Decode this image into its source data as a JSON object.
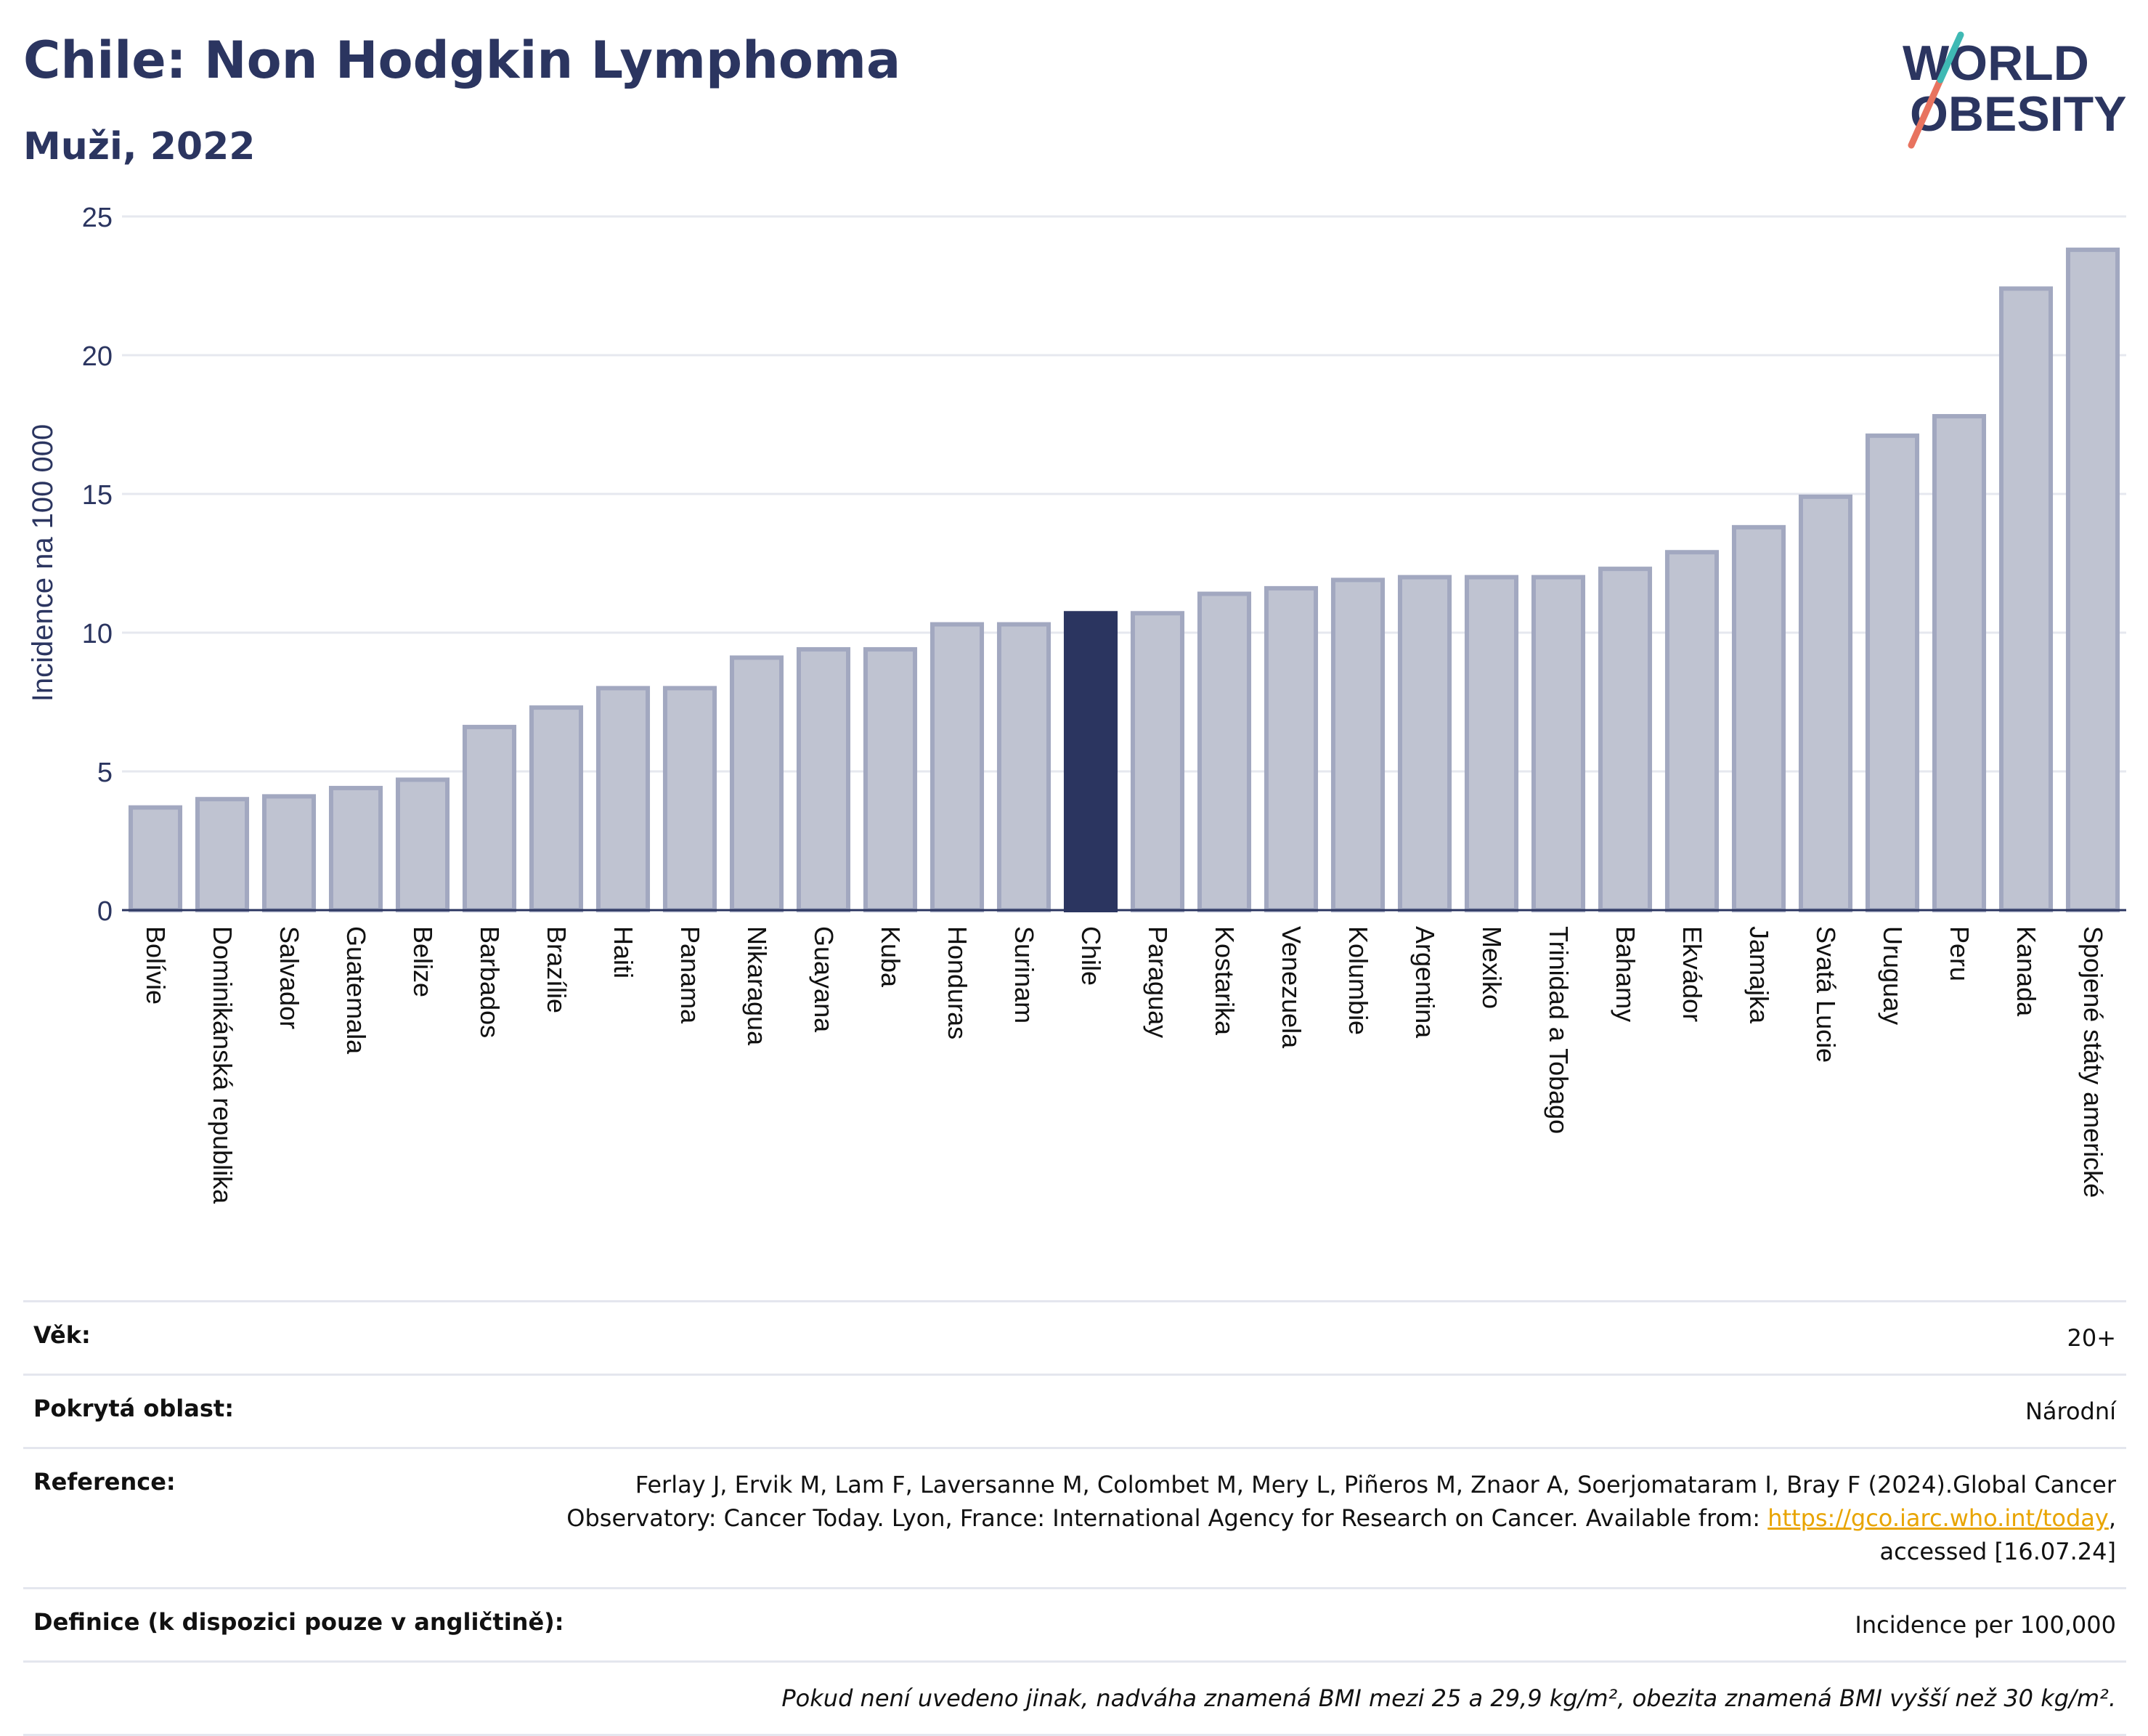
{
  "header": {
    "title": "Chile: Non Hodgkin Lymphoma",
    "subtitle": "Muži, 2022"
  },
  "logo": {
    "line1": "WORLD",
    "line2": "OBESITY"
  },
  "colors": {
    "bar": "#bfc3d1",
    "bar_border": "#a2a8c0",
    "highlight": "#2b3560",
    "grid": "#e6e8ef",
    "text": "#2b3560"
  },
  "chart_data": {
    "type": "bar",
    "ylabel": "Incidence na 100 000",
    "ylim": [
      0,
      25
    ],
    "yticks": [
      0,
      5,
      10,
      15,
      20,
      25
    ],
    "highlight": "Chile",
    "categories": [
      "Bolívie",
      "Dominikánská republika",
      "Salvador",
      "Guatemala",
      "Belize",
      "Barbados",
      "Brazílie",
      "Haiti",
      "Panama",
      "Nikaragua",
      "Guayana",
      "Kuba",
      "Honduras",
      "Surinam",
      "Chile",
      "Paraguay",
      "Kostarika",
      "Venezuela",
      "Kolumbie",
      "Argentina",
      "Mexiko",
      "Trinidad a Tobago",
      "Bahamy",
      "Ekvádor",
      "Jamajka",
      "Svatá Lucie",
      "Uruguay",
      "Peru",
      "Kanada",
      "Spojené státy americké"
    ],
    "values": [
      3.7,
      4.0,
      4.1,
      4.4,
      4.7,
      6.6,
      7.3,
      8.0,
      8.0,
      9.1,
      9.4,
      9.4,
      10.3,
      10.3,
      10.7,
      10.7,
      11.4,
      11.6,
      11.9,
      12.0,
      12.0,
      12.0,
      12.3,
      12.9,
      13.8,
      14.9,
      17.1,
      17.8,
      22.4,
      23.8
    ]
  },
  "meta": {
    "age_label": "Věk:",
    "age_value": "20+",
    "area_label": "Pokrytá oblast:",
    "area_value": "Národní",
    "ref_label": "Reference:",
    "ref_text1": "Ferlay J, Ervik M, Lam F, Laversanne M, Colombet M, Mery L, Piñeros M, Znaor A, Soerjomataram I, Bray F (2024).Global Cancer",
    "ref_text2": "Observatory: Cancer Today. Lyon, France: International Agency for Research on Cancer. Available from: ",
    "ref_link": "https://gco.iarc.who.int/today",
    "ref_text3": ",",
    "ref_text4": "accessed [16.07.24]",
    "def_label": "Definice (k dispozici pouze v angličtině):",
    "def_value": "Incidence per 100,000",
    "note": "Pokud není uvedeno jinak, nadváha znamená BMI mezi 25 a 29,9 kg/m², obezita znamená BMI vyšší než 30 kg/m²."
  }
}
